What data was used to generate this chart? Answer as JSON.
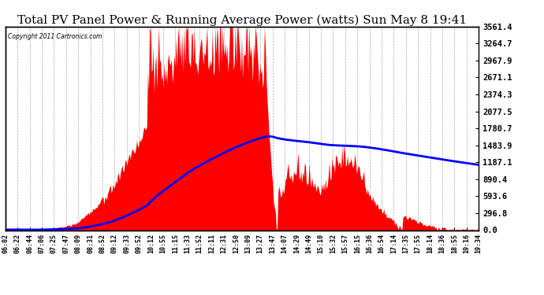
{
  "title": "Total PV Panel Power & Running Average Power (watts) Sun May 8 19:41",
  "copyright": "Copyright 2011 Cartronics.com",
  "ylabel_right_values": [
    0.0,
    296.8,
    593.6,
    890.4,
    1187.1,
    1483.9,
    1780.7,
    2077.5,
    2374.3,
    2671.1,
    2967.9,
    3264.7,
    3561.4
  ],
  "ymax": 3561.4,
  "bg_color": "#ffffff",
  "fill_color": "#ff0000",
  "avg_color": "#0000ff",
  "title_fontsize": 11,
  "x_tick_labels": [
    "06:02",
    "06:22",
    "06:44",
    "07:06",
    "07:25",
    "07:47",
    "08:09",
    "08:31",
    "08:52",
    "09:12",
    "09:33",
    "09:52",
    "10:12",
    "10:55",
    "11:15",
    "11:33",
    "11:52",
    "12:11",
    "12:31",
    "12:50",
    "13:09",
    "13:27",
    "13:47",
    "14:07",
    "14:29",
    "14:49",
    "15:10",
    "15:32",
    "15:57",
    "16:15",
    "16:36",
    "16:54",
    "17:14",
    "17:35",
    "17:55",
    "18:14",
    "18:36",
    "18:55",
    "19:16",
    "19:34"
  ]
}
